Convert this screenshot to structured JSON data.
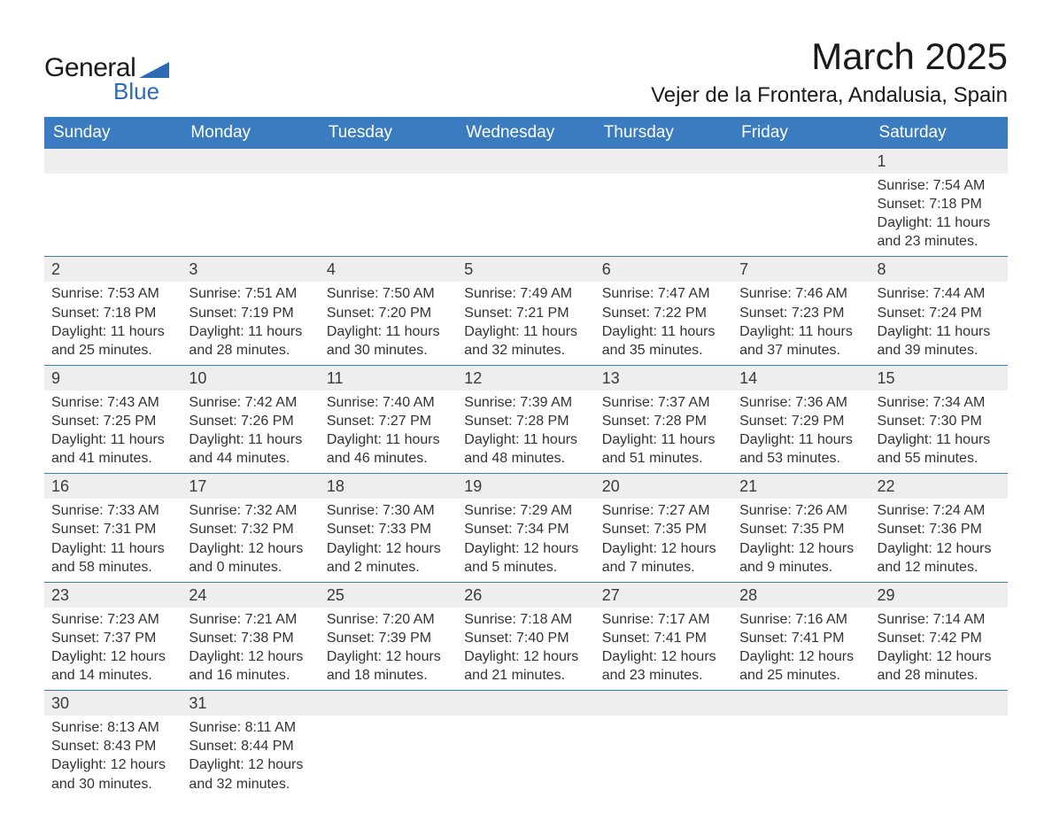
{
  "logo": {
    "text1": "General",
    "text2": "Blue",
    "triangle_color": "#2d6bb5"
  },
  "title": "March 2025",
  "location": "Vejer de la Frontera, Andalusia, Spain",
  "colors": {
    "header_bg": "#3b7bbf",
    "header_text": "#ffffff",
    "daynum_bg": "#eeeeee",
    "border": "#3b7bbf",
    "text": "#333333"
  },
  "day_headers": [
    "Sunday",
    "Monday",
    "Tuesday",
    "Wednesday",
    "Thursday",
    "Friday",
    "Saturday"
  ],
  "weeks": [
    [
      null,
      null,
      null,
      null,
      null,
      null,
      {
        "n": "1",
        "sr": "7:54 AM",
        "ss": "7:18 PM",
        "dl": "11 hours and 23 minutes."
      }
    ],
    [
      {
        "n": "2",
        "sr": "7:53 AM",
        "ss": "7:18 PM",
        "dl": "11 hours and 25 minutes."
      },
      {
        "n": "3",
        "sr": "7:51 AM",
        "ss": "7:19 PM",
        "dl": "11 hours and 28 minutes."
      },
      {
        "n": "4",
        "sr": "7:50 AM",
        "ss": "7:20 PM",
        "dl": "11 hours and 30 minutes."
      },
      {
        "n": "5",
        "sr": "7:49 AM",
        "ss": "7:21 PM",
        "dl": "11 hours and 32 minutes."
      },
      {
        "n": "6",
        "sr": "7:47 AM",
        "ss": "7:22 PM",
        "dl": "11 hours and 35 minutes."
      },
      {
        "n": "7",
        "sr": "7:46 AM",
        "ss": "7:23 PM",
        "dl": "11 hours and 37 minutes."
      },
      {
        "n": "8",
        "sr": "7:44 AM",
        "ss": "7:24 PM",
        "dl": "11 hours and 39 minutes."
      }
    ],
    [
      {
        "n": "9",
        "sr": "7:43 AM",
        "ss": "7:25 PM",
        "dl": "11 hours and 41 minutes."
      },
      {
        "n": "10",
        "sr": "7:42 AM",
        "ss": "7:26 PM",
        "dl": "11 hours and 44 minutes."
      },
      {
        "n": "11",
        "sr": "7:40 AM",
        "ss": "7:27 PM",
        "dl": "11 hours and 46 minutes."
      },
      {
        "n": "12",
        "sr": "7:39 AM",
        "ss": "7:28 PM",
        "dl": "11 hours and 48 minutes."
      },
      {
        "n": "13",
        "sr": "7:37 AM",
        "ss": "7:28 PM",
        "dl": "11 hours and 51 minutes."
      },
      {
        "n": "14",
        "sr": "7:36 AM",
        "ss": "7:29 PM",
        "dl": "11 hours and 53 minutes."
      },
      {
        "n": "15",
        "sr": "7:34 AM",
        "ss": "7:30 PM",
        "dl": "11 hours and 55 minutes."
      }
    ],
    [
      {
        "n": "16",
        "sr": "7:33 AM",
        "ss": "7:31 PM",
        "dl": "11 hours and 58 minutes."
      },
      {
        "n": "17",
        "sr": "7:32 AM",
        "ss": "7:32 PM",
        "dl": "12 hours and 0 minutes."
      },
      {
        "n": "18",
        "sr": "7:30 AM",
        "ss": "7:33 PM",
        "dl": "12 hours and 2 minutes."
      },
      {
        "n": "19",
        "sr": "7:29 AM",
        "ss": "7:34 PM",
        "dl": "12 hours and 5 minutes."
      },
      {
        "n": "20",
        "sr": "7:27 AM",
        "ss": "7:35 PM",
        "dl": "12 hours and 7 minutes."
      },
      {
        "n": "21",
        "sr": "7:26 AM",
        "ss": "7:35 PM",
        "dl": "12 hours and 9 minutes."
      },
      {
        "n": "22",
        "sr": "7:24 AM",
        "ss": "7:36 PM",
        "dl": "12 hours and 12 minutes."
      }
    ],
    [
      {
        "n": "23",
        "sr": "7:23 AM",
        "ss": "7:37 PM",
        "dl": "12 hours and 14 minutes."
      },
      {
        "n": "24",
        "sr": "7:21 AM",
        "ss": "7:38 PM",
        "dl": "12 hours and 16 minutes."
      },
      {
        "n": "25",
        "sr": "7:20 AM",
        "ss": "7:39 PM",
        "dl": "12 hours and 18 minutes."
      },
      {
        "n": "26",
        "sr": "7:18 AM",
        "ss": "7:40 PM",
        "dl": "12 hours and 21 minutes."
      },
      {
        "n": "27",
        "sr": "7:17 AM",
        "ss": "7:41 PM",
        "dl": "12 hours and 23 minutes."
      },
      {
        "n": "28",
        "sr": "7:16 AM",
        "ss": "7:41 PM",
        "dl": "12 hours and 25 minutes."
      },
      {
        "n": "29",
        "sr": "7:14 AM",
        "ss": "7:42 PM",
        "dl": "12 hours and 28 minutes."
      }
    ],
    [
      {
        "n": "30",
        "sr": "8:13 AM",
        "ss": "8:43 PM",
        "dl": "12 hours and 30 minutes."
      },
      {
        "n": "31",
        "sr": "8:11 AM",
        "ss": "8:44 PM",
        "dl": "12 hours and 32 minutes."
      },
      null,
      null,
      null,
      null,
      null
    ]
  ],
  "labels": {
    "sunrise": "Sunrise: ",
    "sunset": "Sunset: ",
    "daylight": "Daylight: "
  }
}
